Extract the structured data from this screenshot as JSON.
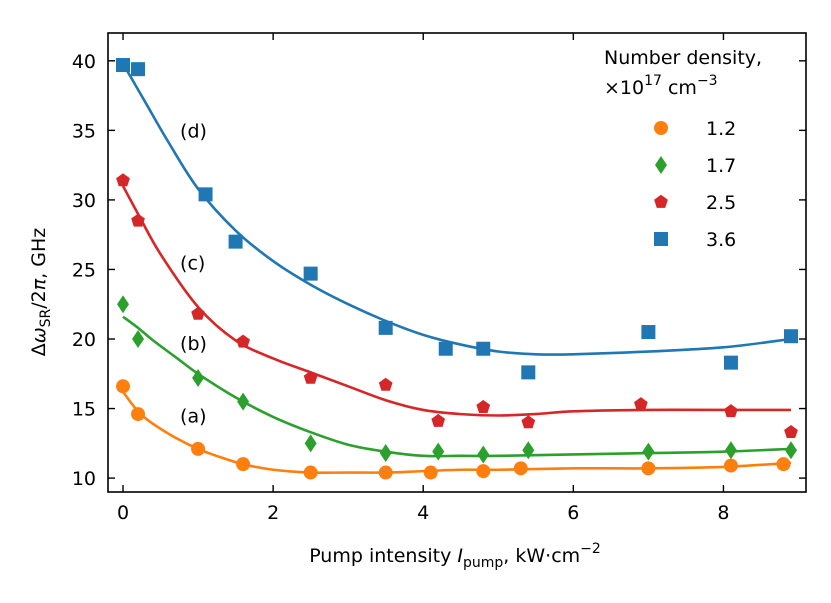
{
  "chart_data": {
    "type": "scatter",
    "xlabel": {
      "main": "Pump intensity ",
      "var": "I",
      "sub": "pump",
      "unit": ", kW·cm",
      "sup": "−2"
    },
    "ylabel": {
      "delta": "Δ",
      "omega": "ω",
      "sub": "SR",
      "rest": "/2",
      "pi": "π",
      "unit": ", GHz"
    },
    "xlim": [
      -0.2,
      9.1
    ],
    "ylim": [
      9,
      42
    ],
    "xticks": [
      "0",
      "2",
      "4",
      "6",
      "8"
    ],
    "xtick_values": [
      0,
      2,
      4,
      6,
      8
    ],
    "yticks": [
      "10",
      "15",
      "20",
      "25",
      "30",
      "35",
      "40"
    ],
    "ytick_values": [
      10,
      15,
      20,
      25,
      30,
      35,
      40
    ],
    "legend": {
      "title_line1": "Number density,",
      "title_line2_prefix": "×10",
      "title_line2_exp": "17",
      "title_line2_unit": " cm",
      "title_line2_unit_exp": "−3",
      "placement": "top-right"
    },
    "series": [
      {
        "name": "1.2",
        "label": "(a)",
        "color": "#ff7f0e",
        "marker": "circle",
        "points": [
          [
            0,
            16.6
          ],
          [
            0.2,
            14.6
          ],
          [
            1.0,
            12.1
          ],
          [
            1.6,
            11.0
          ],
          [
            2.5,
            10.4
          ],
          [
            3.5,
            10.4
          ],
          [
            4.1,
            10.4
          ],
          [
            4.8,
            10.5
          ],
          [
            5.3,
            10.7
          ],
          [
            7.0,
            10.7
          ],
          [
            8.1,
            10.9
          ],
          [
            8.8,
            11.0
          ]
        ],
        "fit": [
          [
            0,
            16.2
          ],
          [
            0.2,
            14.8
          ],
          [
            0.4,
            13.9
          ],
          [
            0.7,
            12.9
          ],
          [
            1.0,
            12.1
          ],
          [
            1.3,
            11.5
          ],
          [
            1.6,
            11.0
          ],
          [
            2.0,
            10.6
          ],
          [
            2.5,
            10.4
          ],
          [
            3.0,
            10.4
          ],
          [
            3.5,
            10.4
          ],
          [
            4.0,
            10.5
          ],
          [
            4.5,
            10.6
          ],
          [
            5.0,
            10.6
          ],
          [
            6.0,
            10.7
          ],
          [
            7.0,
            10.7
          ],
          [
            8.0,
            10.8
          ],
          [
            8.9,
            11.1
          ]
        ]
      },
      {
        "name": "1.7",
        "label": "(b)",
        "color": "#2ca02c",
        "marker": "diamond",
        "points": [
          [
            0,
            22.5
          ],
          [
            0.2,
            20.0
          ],
          [
            1.0,
            17.2
          ],
          [
            1.6,
            15.5
          ],
          [
            2.5,
            12.5
          ],
          [
            3.5,
            11.8
          ],
          [
            4.2,
            11.9
          ],
          [
            4.8,
            11.7
          ],
          [
            5.4,
            12.0
          ],
          [
            7.0,
            11.9
          ],
          [
            8.1,
            12.0
          ],
          [
            8.9,
            12.0
          ]
        ],
        "fit": [
          [
            0,
            21.6
          ],
          [
            0.2,
            20.8
          ],
          [
            0.4,
            19.9
          ],
          [
            0.7,
            18.7
          ],
          [
            1.0,
            17.5
          ],
          [
            1.5,
            15.8
          ],
          [
            2.0,
            14.4
          ],
          [
            2.5,
            13.3
          ],
          [
            3.0,
            12.4
          ],
          [
            3.5,
            11.9
          ],
          [
            4.0,
            11.6
          ],
          [
            4.5,
            11.6
          ],
          [
            5.0,
            11.6
          ],
          [
            6.0,
            11.7
          ],
          [
            7.0,
            11.8
          ],
          [
            8.0,
            11.9
          ],
          [
            8.9,
            12.1
          ]
        ]
      },
      {
        "name": "2.5",
        "label": "(c)",
        "color": "#d62728",
        "marker": "pentagon",
        "points": [
          [
            0,
            31.4
          ],
          [
            0.2,
            28.5
          ],
          [
            1.0,
            21.8
          ],
          [
            1.6,
            19.8
          ],
          [
            2.5,
            17.2
          ],
          [
            3.5,
            16.7
          ],
          [
            4.2,
            14.1
          ],
          [
            4.8,
            15.1
          ],
          [
            5.4,
            14.0
          ],
          [
            6.9,
            15.3
          ],
          [
            8.1,
            14.8
          ],
          [
            8.9,
            13.3
          ]
        ],
        "fit": [
          [
            0,
            31.0
          ],
          [
            0.2,
            29.0
          ],
          [
            0.5,
            26.1
          ],
          [
            1.0,
            22.3
          ],
          [
            1.5,
            19.9
          ],
          [
            2.0,
            18.6
          ],
          [
            2.5,
            17.6
          ],
          [
            3.0,
            16.6
          ],
          [
            3.5,
            15.6
          ],
          [
            4.0,
            14.9
          ],
          [
            4.5,
            14.6
          ],
          [
            5.0,
            14.5
          ],
          [
            5.5,
            14.6
          ],
          [
            6.0,
            14.8
          ],
          [
            7.0,
            14.9
          ],
          [
            8.0,
            14.9
          ],
          [
            8.9,
            14.9
          ]
        ]
      },
      {
        "name": "3.6",
        "label": "(d)",
        "color": "#1f77b4",
        "marker": "square",
        "points": [
          [
            0,
            39.7
          ],
          [
            0.2,
            39.4
          ],
          [
            1.1,
            30.4
          ],
          [
            1.5,
            27.0
          ],
          [
            2.5,
            24.7
          ],
          [
            3.5,
            20.8
          ],
          [
            4.3,
            19.3
          ],
          [
            4.8,
            19.3
          ],
          [
            5.4,
            17.6
          ],
          [
            7.0,
            20.5
          ],
          [
            8.1,
            18.3
          ],
          [
            8.9,
            20.2
          ]
        ],
        "fit": [
          [
            0,
            39.8
          ],
          [
            0.3,
            37.0
          ],
          [
            0.6,
            34.2
          ],
          [
            1.0,
            30.8
          ],
          [
            1.5,
            27.8
          ],
          [
            2.0,
            25.6
          ],
          [
            2.5,
            23.9
          ],
          [
            3.0,
            22.5
          ],
          [
            3.5,
            21.3
          ],
          [
            4.0,
            20.3
          ],
          [
            4.5,
            19.6
          ],
          [
            5.0,
            19.1
          ],
          [
            5.5,
            18.9
          ],
          [
            6.0,
            18.9
          ],
          [
            7.0,
            19.1
          ],
          [
            8.0,
            19.4
          ],
          [
            8.9,
            20.0
          ]
        ]
      }
    ],
    "label_positions": [
      {
        "text": "(a)",
        "x": 0.6,
        "y": 14.0
      },
      {
        "text": "(b)",
        "x": 0.6,
        "y": 19.2
      },
      {
        "text": "(c)",
        "x": 0.6,
        "y": 25.0
      },
      {
        "text": "(d)",
        "x": 0.6,
        "y": 34.5
      }
    ]
  }
}
